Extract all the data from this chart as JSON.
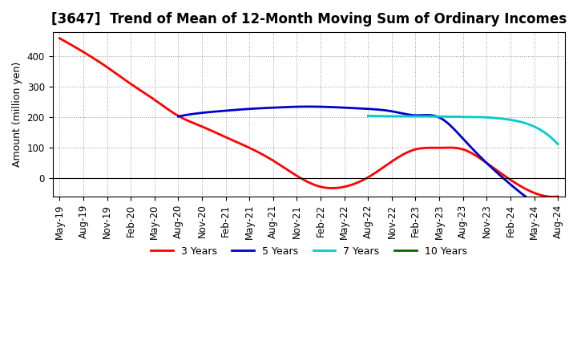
{
  "title": "[3647]  Trend of Mean of 12-Month Moving Sum of Ordinary Incomes",
  "ylabel": "Amount (million yen)",
  "ylim": [
    -60,
    480
  ],
  "yticks": [
    0,
    100,
    200,
    300,
    400
  ],
  "x_labels": [
    "May-19",
    "Aug-19",
    "Nov-19",
    "Feb-20",
    "May-20",
    "Aug-20",
    "Nov-20",
    "Feb-21",
    "May-21",
    "Aug-21",
    "Nov-21",
    "Feb-22",
    "May-22",
    "Aug-22",
    "Nov-22",
    "Feb-23",
    "May-23",
    "Aug-23",
    "Nov-23",
    "Feb-24",
    "May-24",
    "Aug-24"
  ],
  "series": {
    "3 Years": {
      "color": "#ff0000",
      "x": [
        0,
        1,
        2,
        3,
        4,
        5,
        6,
        7,
        8,
        9,
        10,
        11,
        12,
        13,
        14,
        15,
        16,
        17,
        18,
        19,
        20,
        21
      ],
      "y": [
        460,
        415,
        365,
        310,
        258,
        205,
        170,
        135,
        100,
        58,
        8,
        -28,
        -28,
        3,
        55,
        95,
        100,
        95,
        50,
        -5,
        -48,
        -60
      ]
    },
    "5 Years": {
      "color": "#0000cd",
      "x": [
        5,
        6,
        7,
        8,
        9,
        10,
        11,
        12,
        13,
        14,
        15,
        16,
        17,
        18,
        19,
        20,
        21
      ],
      "y": [
        203,
        215,
        222,
        228,
        232,
        235,
        235,
        232,
        228,
        220,
        207,
        200,
        130,
        50,
        -20,
        -80,
        -115
      ]
    },
    "7 Years": {
      "color": "#00cccc",
      "x": [
        13,
        14,
        15,
        16,
        17,
        18,
        19,
        20,
        21
      ],
      "y": [
        205,
        204,
        204,
        203,
        202,
        200,
        192,
        170,
        112
      ]
    },
    "10 Years": {
      "color": "#006600",
      "x": [],
      "y": []
    }
  },
  "legend_labels": [
    "3 Years",
    "5 Years",
    "7 Years",
    "10 Years"
  ],
  "legend_colors": [
    "#ff0000",
    "#0000cd",
    "#00cccc",
    "#006600"
  ],
  "background_color": "#ffffff",
  "grid_color": "#999999",
  "title_fontsize": 12,
  "label_fontsize": 9,
  "tick_fontsize": 8.5
}
